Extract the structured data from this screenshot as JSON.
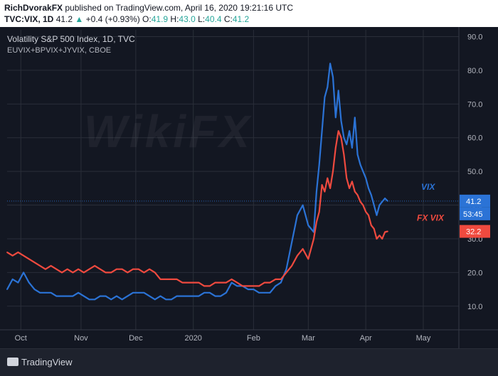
{
  "header": {
    "author": "RichDvorakFX",
    "published_text": "published on TradingView.com, April 16, 2020 19:21:16 UTC",
    "symbol": "TVC:VIX, 1D",
    "last": "41.2",
    "up_arrow": "▲",
    "change": "+0.4 (+0.93%)",
    "o_label": "O:",
    "o_val": "41.9",
    "h_label": "H:",
    "h_val": "43.0",
    "l_label": "L:",
    "l_val": "40.4",
    "c_label": "C:",
    "c_val": "41.2"
  },
  "legend": {
    "title": "Volatility S&P 500 Index, 1D, TVC",
    "subtitle": "EUVIX+BPVIX+JYVIX, CBOE"
  },
  "watermark": "WikiFX",
  "footer": {
    "logo_text": "TradingView"
  },
  "colors": {
    "background": "#131722",
    "vix": "#2b73d6",
    "fxvix": "#ef4a3f",
    "grid": "#2a2e39",
    "axis_text": "#b2b5be"
  },
  "chart_data": {
    "type": "line",
    "ylim": [
      3,
      92
    ],
    "xlim": [
      0,
      165
    ],
    "y_ticks": [
      10,
      20,
      30,
      40,
      50,
      60,
      70,
      80,
      90
    ],
    "y_tick_labels": [
      "10.0",
      "20.0",
      "30.0",
      "40.0",
      "50.0",
      "60.0",
      "70.0",
      "80.0",
      "90.0"
    ],
    "x_ticks": [
      {
        "pos": 5,
        "label": "Oct"
      },
      {
        "pos": 27,
        "label": "Nov"
      },
      {
        "pos": 47,
        "label": "Dec"
      },
      {
        "pos": 68,
        "label": "2020"
      },
      {
        "pos": 90,
        "label": "Feb"
      },
      {
        "pos": 110,
        "label": "Mar"
      },
      {
        "pos": 131,
        "label": "Apr"
      },
      {
        "pos": 152,
        "label": "May"
      }
    ],
    "series": [
      {
        "name": "VIX",
        "color": "#2b73d6",
        "label": "VIX",
        "last_label": "41.2",
        "countdown_label": "53:45",
        "last_value": 41.2,
        "x": [
          0,
          2,
          4,
          6,
          8,
          10,
          12,
          14,
          16,
          18,
          20,
          22,
          24,
          26,
          28,
          30,
          32,
          34,
          36,
          38,
          40,
          42,
          44,
          46,
          48,
          50,
          52,
          54,
          56,
          58,
          60,
          62,
          64,
          66,
          68,
          70,
          72,
          74,
          76,
          78,
          80,
          82,
          84,
          86,
          88,
          90,
          92,
          94,
          96,
          98,
          100,
          102,
          104,
          106,
          108,
          110,
          112,
          113,
          114,
          115,
          116,
          117,
          118,
          119,
          120,
          121,
          122,
          123,
          124,
          125,
          126,
          127,
          128,
          129,
          130,
          131,
          132,
          133,
          134,
          135,
          136,
          137,
          138,
          139
        ],
        "y": [
          15,
          18,
          17,
          20,
          17,
          15,
          14,
          14,
          14,
          13,
          13,
          13,
          13,
          14,
          13,
          12,
          12,
          13,
          13,
          12,
          13,
          12,
          13,
          14,
          14,
          14,
          13,
          12,
          13,
          12,
          12,
          13,
          13,
          13,
          13,
          13,
          14,
          14,
          13,
          13,
          14,
          17,
          16,
          16,
          15,
          15,
          14,
          14,
          14,
          16,
          17,
          21,
          29,
          37,
          40,
          34,
          32,
          44,
          52,
          62,
          72,
          75,
          82,
          78,
          66,
          74,
          65,
          60,
          58,
          62,
          57,
          66,
          55,
          52,
          50,
          48,
          45,
          43,
          40,
          37,
          40,
          41,
          42,
          41.2
        ]
      },
      {
        "name": "FX VIX",
        "color": "#ef4a3f",
        "label": "FX VIX",
        "last_label": "32.2",
        "last_value": 32.2,
        "x": [
          0,
          2,
          4,
          6,
          8,
          10,
          12,
          14,
          16,
          18,
          20,
          22,
          24,
          26,
          28,
          30,
          32,
          34,
          36,
          38,
          40,
          42,
          44,
          46,
          48,
          50,
          52,
          54,
          56,
          58,
          60,
          62,
          64,
          66,
          68,
          70,
          72,
          74,
          76,
          78,
          80,
          82,
          84,
          86,
          88,
          90,
          92,
          94,
          96,
          98,
          100,
          102,
          104,
          106,
          108,
          110,
          112,
          113,
          114,
          115,
          116,
          117,
          118,
          119,
          120,
          121,
          122,
          123,
          124,
          125,
          126,
          127,
          128,
          129,
          130,
          131,
          132,
          133,
          134,
          135,
          136,
          137,
          138,
          139
        ],
        "y": [
          26,
          25,
          26,
          25,
          24,
          23,
          22,
          21,
          22,
          21,
          20,
          21,
          20,
          21,
          20,
          21,
          22,
          21,
          20,
          20,
          21,
          21,
          20,
          21,
          21,
          20,
          21,
          20,
          18,
          18,
          18,
          18,
          17,
          17,
          17,
          17,
          16,
          16,
          17,
          17,
          17,
          18,
          17,
          16,
          16,
          16,
          16,
          17,
          17,
          18,
          18,
          20,
          22,
          25,
          27,
          24,
          30,
          35,
          38,
          46,
          44,
          48,
          45,
          50,
          57,
          62,
          60,
          55,
          48,
          45,
          47,
          44,
          43,
          41,
          40,
          38,
          37,
          34,
          33,
          30,
          31,
          30,
          32,
          32.2
        ]
      }
    ]
  }
}
